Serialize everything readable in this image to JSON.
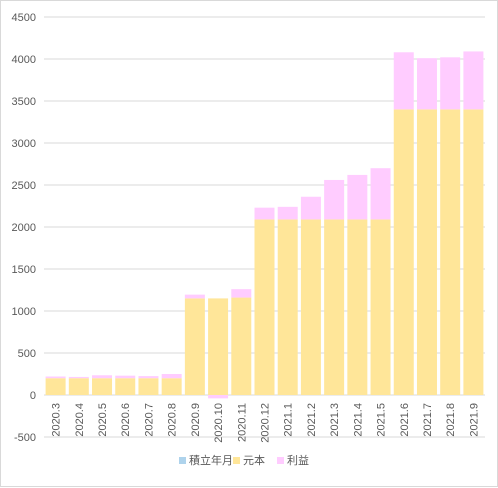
{
  "chart_data": {
    "type": "bar",
    "stacked": true,
    "categories": [
      "2020.3",
      "2020.4",
      "2020.5",
      "2020.6",
      "2020.7",
      "2020.8",
      "2020.9",
      "2020.10",
      "2020.11",
      "2020.12",
      "2021.1",
      "2021.2",
      "2021.3",
      "2021.4",
      "2021.5",
      "2021.6",
      "2021.7",
      "2021.8",
      "2021.9"
    ],
    "series": [
      {
        "name": "積立年月",
        "color": "#aed3ec",
        "values": [
          0,
          0,
          0,
          0,
          0,
          0,
          0,
          0,
          0,
          0,
          0,
          0,
          0,
          0,
          0,
          0,
          0,
          0,
          0
        ]
      },
      {
        "name": "元本",
        "color": "#ffe699",
        "values": [
          200,
          200,
          200,
          200,
          200,
          200,
          1150,
          1150,
          1160,
          2090,
          2090,
          2090,
          2090,
          2090,
          2090,
          3400,
          3400,
          3400,
          3400
        ]
      },
      {
        "name": "利益",
        "color": "#ffccff",
        "values": [
          20,
          15,
          35,
          30,
          25,
          50,
          45,
          -40,
          100,
          140,
          150,
          270,
          470,
          530,
          610,
          680,
          610,
          620,
          690
        ]
      }
    ],
    "ylim": [
      -500,
      4500
    ],
    "yticks": [
      -500,
      0,
      500,
      1000,
      1500,
      2000,
      2500,
      3000,
      3500,
      4000,
      4500
    ],
    "grid": true,
    "legend": "bottom",
    "title": "",
    "xlabel": "",
    "ylabel": ""
  }
}
